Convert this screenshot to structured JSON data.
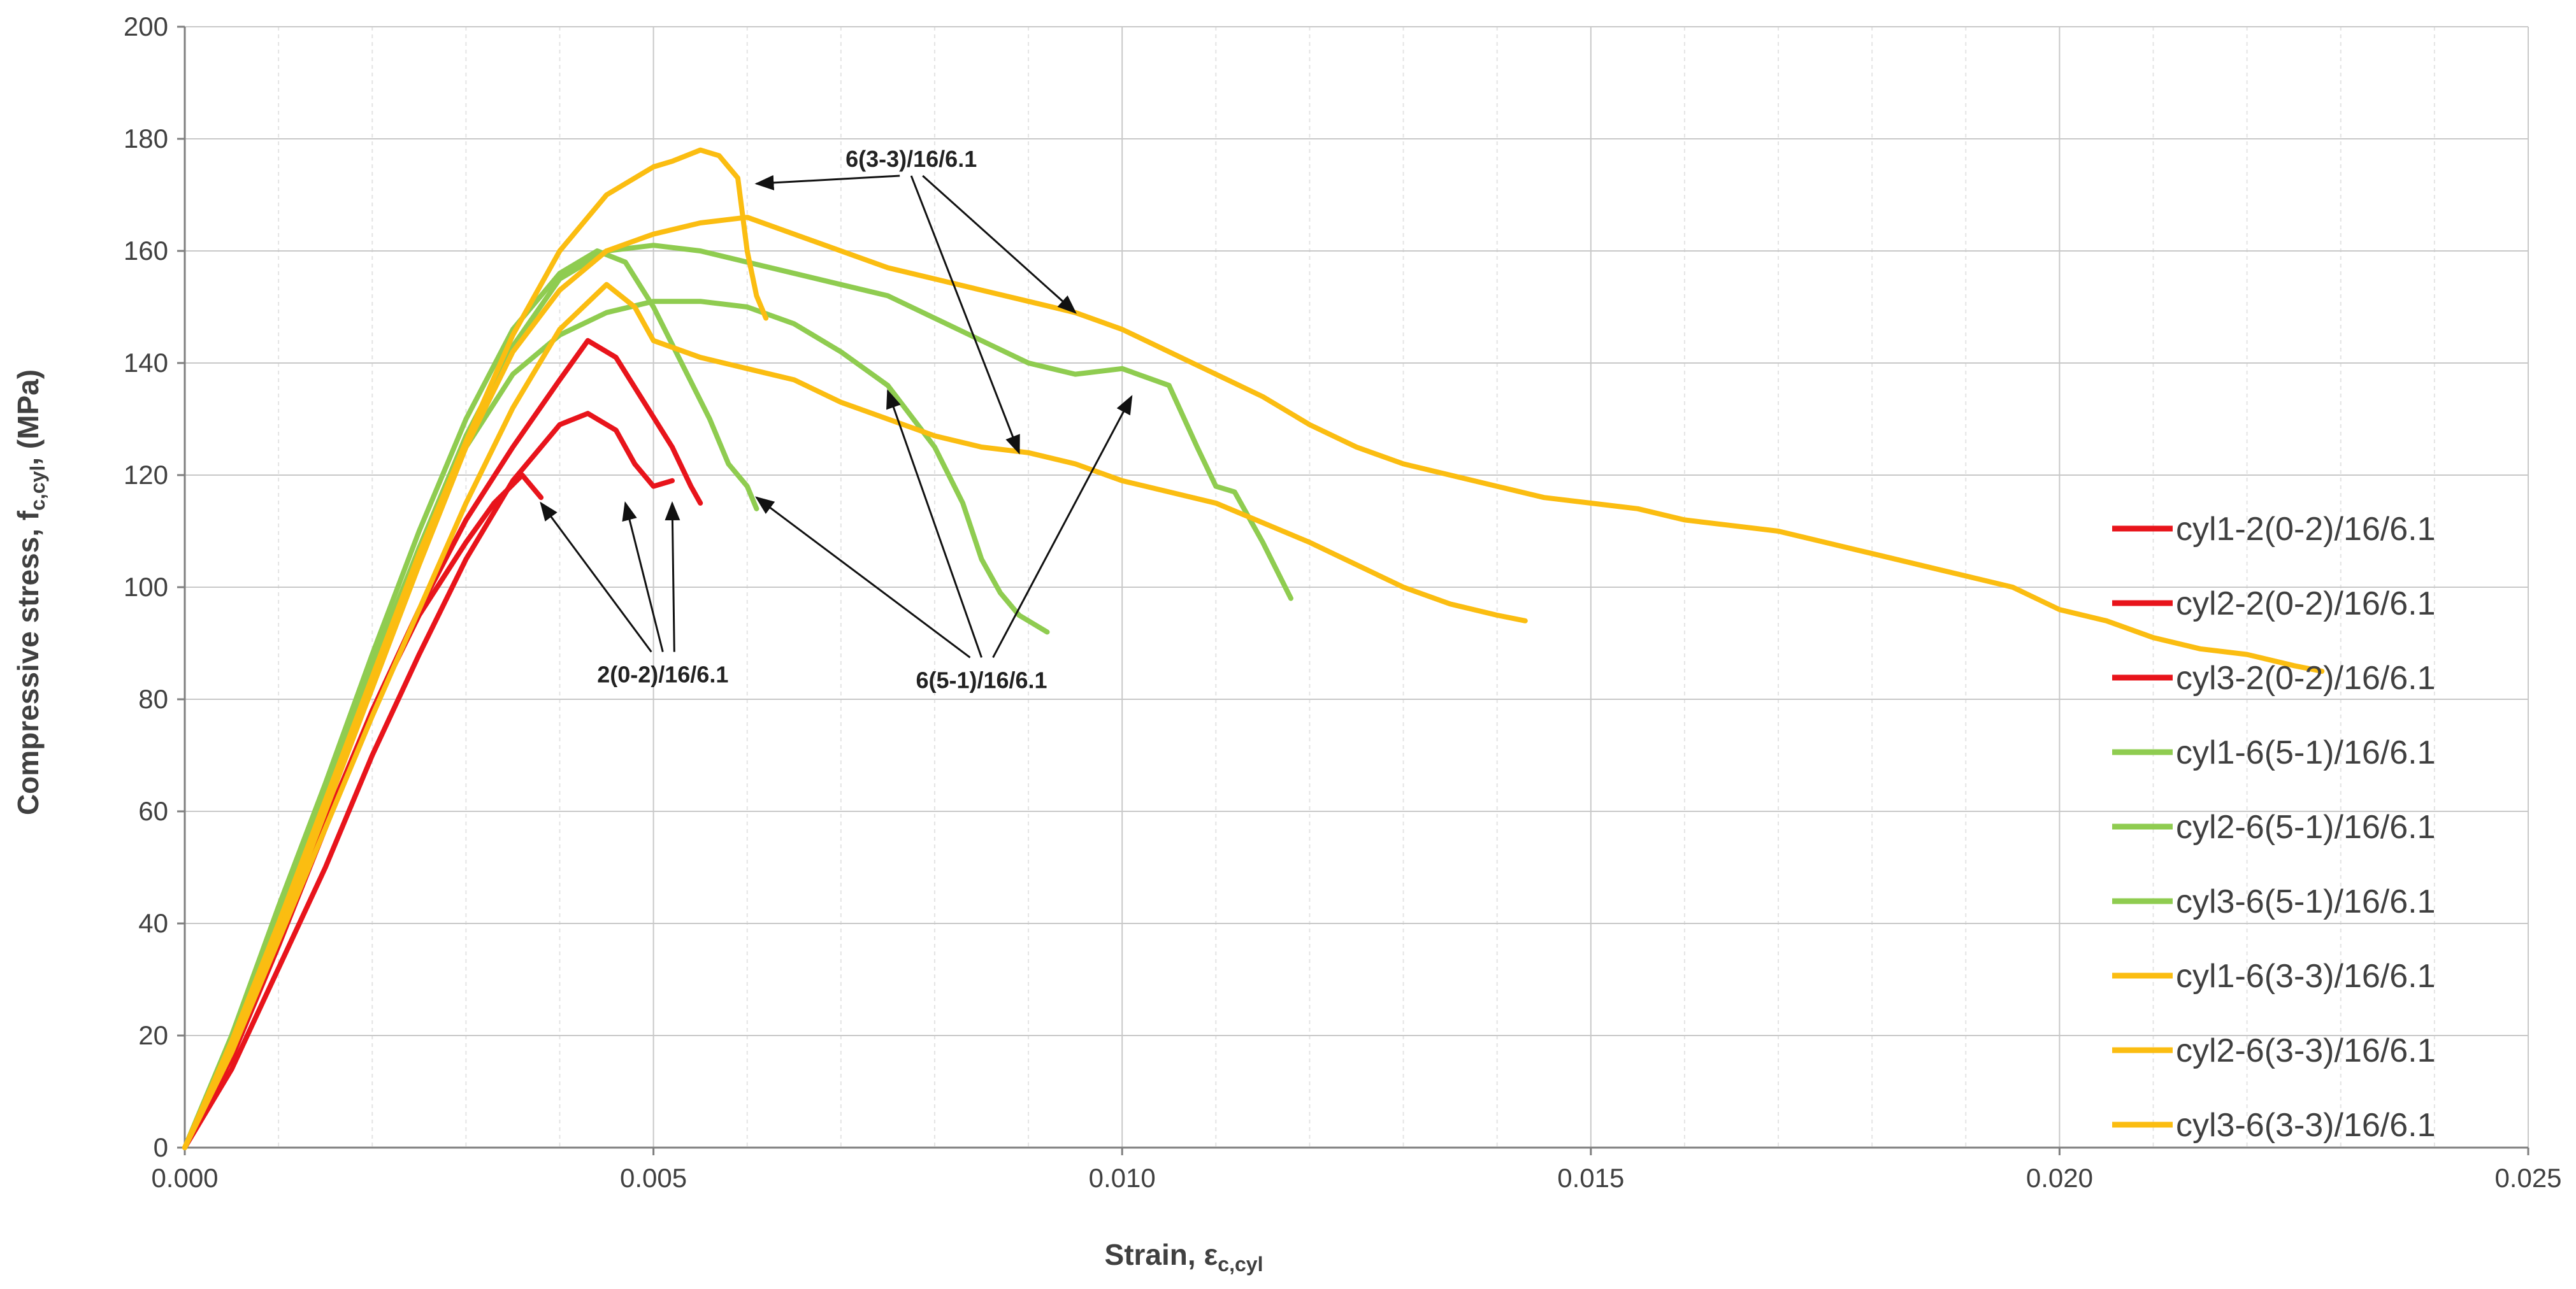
{
  "chart_data": {
    "type": "line",
    "title": "",
    "xlabel": "Strain, ε",
    "xlabel_sub": "c,cyl",
    "ylabel": "Compressive stress, f",
    "ylabel_sub": "c,cyl",
    "ylabel_unit": ", (MPa)",
    "xlim": [
      0,
      0.025
    ],
    "ylim": [
      0,
      200
    ],
    "x_ticks": [
      0.0,
      0.005,
      0.01,
      0.015,
      0.02,
      0.025
    ],
    "x_tick_labels": [
      "0.000",
      "0.005",
      "0.010",
      "0.015",
      "0.020",
      "0.025"
    ],
    "y_ticks": [
      0,
      20,
      40,
      60,
      80,
      100,
      120,
      140,
      160,
      180,
      200
    ],
    "y_tick_labels": [
      "0",
      "20",
      "40",
      "60",
      "80",
      "100",
      "120",
      "140",
      "160",
      "180",
      "200"
    ],
    "grid": true,
    "legend_position": "right",
    "colors": {
      "red": "#e8141b",
      "green": "#8fcc50",
      "orange": "#fbbd11",
      "grid_major": "#c8c8c8",
      "grid_minor": "#e4e4e4",
      "axis": "#7f7f7f"
    },
    "series": [
      {
        "name": "cyl1-2(0-2)/16/6.1",
        "color": "#e8141b",
        "x": [
          0.0,
          0.0005,
          0.001,
          0.0015,
          0.002,
          0.0025,
          0.003,
          0.0033,
          0.0036,
          0.0038
        ],
        "y": [
          0,
          18,
          38,
          58,
          78,
          95,
          108,
          115,
          120,
          116
        ]
      },
      {
        "name": "cyl2-2(0-2)/16/6.1",
        "color": "#e8141b",
        "x": [
          0.0,
          0.0005,
          0.001,
          0.0015,
          0.002,
          0.0025,
          0.003,
          0.0035,
          0.004,
          0.0043,
          0.0046,
          0.0048,
          0.005,
          0.0052
        ],
        "y": [
          0,
          14,
          32,
          50,
          70,
          88,
          105,
          119,
          129,
          131,
          128,
          122,
          118,
          119
        ]
      },
      {
        "name": "cyl3-2(0-2)/16/6.1",
        "color": "#e8141b",
        "x": [
          0.0,
          0.0005,
          0.001,
          0.0015,
          0.002,
          0.0025,
          0.003,
          0.0035,
          0.004,
          0.0043,
          0.0046,
          0.0049,
          0.0052,
          0.0054,
          0.0055
        ],
        "y": [
          0,
          16,
          36,
          57,
          78,
          96,
          112,
          125,
          137,
          144,
          141,
          133,
          125,
          118,
          115
        ]
      },
      {
        "name": "cyl1-6(5-1)/16/6.1",
        "color": "#8fcc50",
        "x": [
          0.0,
          0.0005,
          0.001,
          0.0015,
          0.002,
          0.0025,
          0.003,
          0.0035,
          0.004,
          0.0044,
          0.0047,
          0.005,
          0.0053,
          0.0056,
          0.0058,
          0.006,
          0.0061
        ],
        "y": [
          0,
          20,
          43,
          65,
          88,
          110,
          130,
          146,
          156,
          160,
          158,
          150,
          140,
          130,
          122,
          118,
          114
        ]
      },
      {
        "name": "cyl2-6(5-1)/16/6.1",
        "color": "#8fcc50",
        "x": [
          0.0,
          0.0005,
          0.001,
          0.0015,
          0.002,
          0.0025,
          0.003,
          0.0035,
          0.004,
          0.0045,
          0.005,
          0.0055,
          0.006,
          0.0065,
          0.007,
          0.0075,
          0.008,
          0.0083,
          0.0085,
          0.0087,
          0.0089,
          0.0092
        ],
        "y": [
          0,
          18,
          40,
          62,
          85,
          107,
          125,
          138,
          145,
          149,
          151,
          151,
          150,
          147,
          142,
          136,
          125,
          115,
          105,
          99,
          95,
          92
        ]
      },
      {
        "name": "cyl3-6(5-1)/16/6.1",
        "color": "#8fcc50",
        "x": [
          0.0,
          0.0005,
          0.001,
          0.0015,
          0.002,
          0.0025,
          0.003,
          0.0035,
          0.004,
          0.0045,
          0.005,
          0.0055,
          0.006,
          0.0065,
          0.007,
          0.0075,
          0.008,
          0.0085,
          0.009,
          0.0095,
          0.01,
          0.0105,
          0.0108,
          0.011,
          0.0112,
          0.0115,
          0.0118
        ],
        "y": [
          0,
          20,
          42,
          64,
          86,
          107,
          127,
          143,
          155,
          160,
          161,
          160,
          158,
          156,
          154,
          152,
          148,
          144,
          140,
          138,
          139,
          136,
          125,
          118,
          117,
          108,
          98
        ]
      },
      {
        "name": "cyl1-6(3-3)/16/6.1",
        "color": "#fbbd11",
        "x": [
          0.0,
          0.0005,
          0.001,
          0.0015,
          0.002,
          0.0025,
          0.003,
          0.0035,
          0.004,
          0.0045,
          0.0048,
          0.005,
          0.0055,
          0.006,
          0.0065,
          0.007,
          0.0075,
          0.008,
          0.0085,
          0.009,
          0.0095,
          0.01,
          0.011,
          0.012,
          0.013,
          0.0135,
          0.014,
          0.0143
        ],
        "y": [
          0,
          17,
          37,
          57,
          77,
          96,
          115,
          132,
          146,
          154,
          150,
          144,
          141,
          139,
          137,
          133,
          130,
          127,
          125,
          124,
          122,
          119,
          115,
          108,
          100,
          97,
          95,
          94
        ]
      },
      {
        "name": "cyl2-6(3-3)/16/6.1",
        "color": "#fbbd11",
        "x": [
          0.0,
          0.0005,
          0.001,
          0.0015,
          0.002,
          0.0025,
          0.003,
          0.0035,
          0.004,
          0.0045,
          0.005,
          0.0052,
          0.0055,
          0.0057,
          0.0059,
          0.006,
          0.0061,
          0.0062
        ],
        "y": [
          0,
          19,
          40,
          62,
          84,
          106,
          126,
          145,
          160,
          170,
          175,
          176,
          178,
          177,
          173,
          160,
          152,
          148
        ]
      },
      {
        "name": "cyl3-6(3-3)/16/6.1",
        "color": "#fbbd11",
        "x": [
          0.0,
          0.0005,
          0.001,
          0.0015,
          0.002,
          0.0025,
          0.003,
          0.0035,
          0.004,
          0.0045,
          0.005,
          0.0055,
          0.006,
          0.0065,
          0.007,
          0.0075,
          0.008,
          0.0085,
          0.009,
          0.0095,
          0.01,
          0.0105,
          0.011,
          0.0115,
          0.012,
          0.0125,
          0.013,
          0.0135,
          0.014,
          0.0145,
          0.015,
          0.0155,
          0.016,
          0.0165,
          0.017,
          0.0175,
          0.018,
          0.0185,
          0.019,
          0.0195,
          0.02,
          0.0205,
          0.021,
          0.0215,
          0.022,
          0.0225,
          0.0228
        ],
        "y": [
          0,
          18,
          38,
          60,
          82,
          104,
          125,
          142,
          153,
          160,
          163,
          165,
          166,
          163,
          160,
          157,
          155,
          153,
          151,
          149,
          146,
          142,
          138,
          134,
          129,
          125,
          122,
          120,
          118,
          116,
          115,
          114,
          112,
          111,
          110,
          108,
          106,
          104,
          102,
          100,
          96,
          94,
          91,
          89,
          88,
          86,
          85
        ]
      }
    ],
    "annotations": [
      {
        "text": "6(3-3)/16/6.1",
        "x": 0.00775,
        "y": 175,
        "targets": [
          [
            0.0061,
            172
          ],
          [
            0.0089,
            124
          ],
          [
            0.0095,
            149
          ]
        ]
      },
      {
        "text": "2(0-2)/16/6.1",
        "x": 0.0051,
        "y": 83,
        "targets": [
          [
            0.0038,
            115
          ],
          [
            0.0047,
            115
          ],
          [
            0.0052,
            115
          ]
        ]
      },
      {
        "text": "6(5-1)/16/6.1",
        "x": 0.0085,
        "y": 82,
        "targets": [
          [
            0.0061,
            116
          ],
          [
            0.0075,
            135
          ],
          [
            0.0101,
            134
          ]
        ]
      }
    ]
  }
}
